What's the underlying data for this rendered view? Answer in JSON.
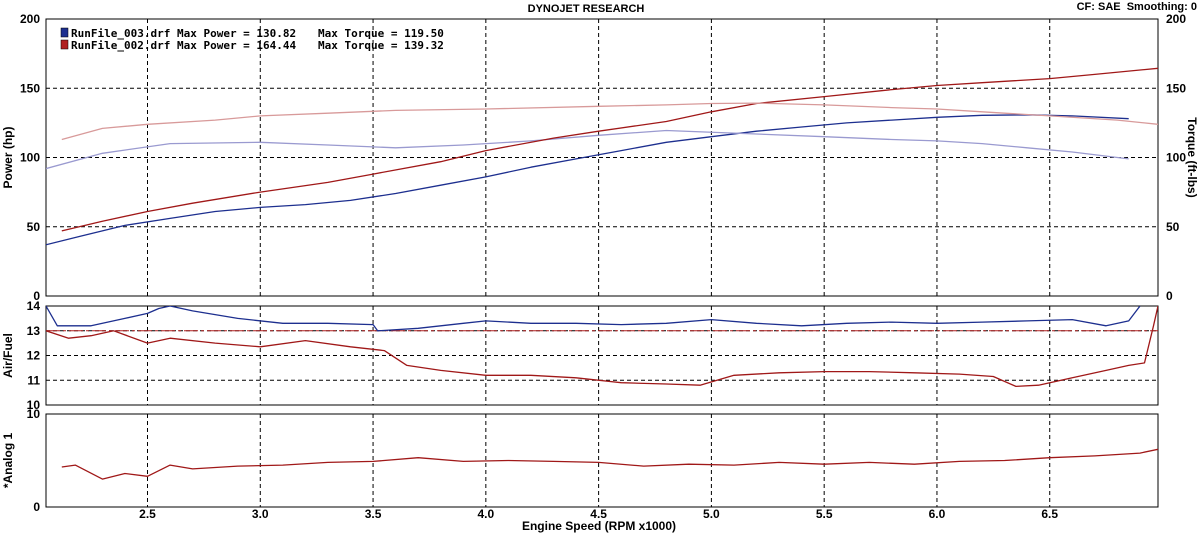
{
  "header": {
    "title": "DYNOJET RESEARCH",
    "settings": "CF: SAE  Smoothing: 0"
  },
  "chart_data": {
    "type": "line",
    "x_axis": {
      "label": "Engine Speed (RPM x1000)",
      "range": [
        2.05,
        6.98
      ],
      "ticks": [
        "2.5",
        "3.0",
        "3.5",
        "4.0",
        "4.5",
        "5.0",
        "5.5",
        "6.0",
        "6.5"
      ]
    },
    "legend": {
      "placement": "top-left",
      "entries": [
        {
          "file": "RunFile_003.drf",
          "text": "RunFile_003.drf Max Power = 130.82",
          "torque_text": "Max Torque = 119.50",
          "color": "#1d2f8f"
        },
        {
          "file": "RunFile_002.drf",
          "text": "RunFile_002.drf Max Power = 164.44",
          "torque_text": "Max Torque = 139.32",
          "color": "#b02020"
        }
      ]
    },
    "panels": [
      {
        "id": "power",
        "ylabel_left": "Power (hp)",
        "ylabel_right": "Torque (ft-lbs)",
        "ylim": [
          0,
          200
        ],
        "yticks": [
          "0",
          "50",
          "100",
          "150",
          "200"
        ],
        "grid": true,
        "series": [
          {
            "name": "RunFile_003.drf",
            "quantity": "power",
            "color": "#1d2f8f",
            "points": [
              [
                2.05,
                37
              ],
              [
                2.2,
                43
              ],
              [
                2.4,
                51
              ],
              [
                2.6,
                56
              ],
              [
                2.8,
                61
              ],
              [
                3.0,
                64
              ],
              [
                3.2,
                66
              ],
              [
                3.4,
                69
              ],
              [
                3.6,
                74
              ],
              [
                3.8,
                80
              ],
              [
                4.0,
                86
              ],
              [
                4.2,
                93
              ],
              [
                4.4,
                99
              ],
              [
                4.6,
                105
              ],
              [
                4.8,
                111
              ],
              [
                5.0,
                115
              ],
              [
                5.2,
                119
              ],
              [
                5.4,
                122
              ],
              [
                5.6,
                125
              ],
              [
                5.8,
                127
              ],
              [
                6.0,
                129
              ],
              [
                6.2,
                130.5
              ],
              [
                6.4,
                130.8
              ],
              [
                6.6,
                130
              ],
              [
                6.85,
                128
              ]
            ]
          },
          {
            "name": "RunFile_003.drf",
            "quantity": "torque",
            "color": "#9a9ad0",
            "points": [
              [
                2.05,
                92
              ],
              [
                2.3,
                103
              ],
              [
                2.6,
                110
              ],
              [
                3.0,
                111
              ],
              [
                3.3,
                109
              ],
              [
                3.6,
                107
              ],
              [
                3.9,
                109
              ],
              [
                4.2,
                112
              ],
              [
                4.5,
                116
              ],
              [
                4.8,
                119.5
              ],
              [
                5.2,
                117
              ],
              [
                5.5,
                115
              ],
              [
                5.8,
                113
              ],
              [
                6.0,
                112
              ],
              [
                6.2,
                110
              ],
              [
                6.4,
                107
              ],
              [
                6.6,
                104
              ],
              [
                6.85,
                99
              ]
            ]
          },
          {
            "name": "RunFile_002.drf",
            "quantity": "power",
            "color": "#a01818",
            "points": [
              [
                2.12,
                47
              ],
              [
                2.3,
                54
              ],
              [
                2.5,
                61
              ],
              [
                2.7,
                67
              ],
              [
                3.0,
                75
              ],
              [
                3.3,
                82
              ],
              [
                3.5,
                88
              ],
              [
                3.8,
                97
              ],
              [
                4.0,
                105
              ],
              [
                4.3,
                114
              ],
              [
                4.5,
                119
              ],
              [
                4.8,
                126
              ],
              [
                5.0,
                133
              ],
              [
                5.2,
                139
              ],
              [
                5.5,
                144
              ],
              [
                5.8,
                149
              ],
              [
                6.0,
                152
              ],
              [
                6.2,
                154
              ],
              [
                6.5,
                157
              ],
              [
                6.7,
                160
              ],
              [
                6.98,
                164.4
              ]
            ]
          },
          {
            "name": "RunFile_002.drf",
            "quantity": "torque",
            "color": "#d89a9a",
            "points": [
              [
                2.12,
                113
              ],
              [
                2.3,
                121
              ],
              [
                2.5,
                124
              ],
              [
                2.8,
                127
              ],
              [
                3.0,
                130
              ],
              [
                3.3,
                132
              ],
              [
                3.6,
                134
              ],
              [
                4.0,
                135
              ],
              [
                4.5,
                137
              ],
              [
                4.8,
                138
              ],
              [
                5.0,
                139
              ],
              [
                5.2,
                139.3
              ],
              [
                5.5,
                138
              ],
              [
                5.8,
                136
              ],
              [
                6.0,
                135
              ],
              [
                6.2,
                133
              ],
              [
                6.5,
                130
              ],
              [
                6.8,
                127
              ],
              [
                6.98,
                124
              ]
            ]
          }
        ]
      },
      {
        "id": "afr",
        "ylabel_left": "Air/Fuel",
        "ylim": [
          10,
          14
        ],
        "yticks": [
          "10",
          "11",
          "12",
          "13",
          "14"
        ],
        "reference_line": 13.0,
        "grid": true,
        "series": [
          {
            "name": "RunFile_003.drf",
            "color": "#1d2f8f",
            "points": [
              [
                2.05,
                14.0
              ],
              [
                2.1,
                13.2
              ],
              [
                2.25,
                13.2
              ],
              [
                2.4,
                13.5
              ],
              [
                2.5,
                13.7
              ],
              [
                2.55,
                13.9
              ],
              [
                2.6,
                14.0
              ],
              [
                2.7,
                13.8
              ],
              [
                2.9,
                13.5
              ],
              [
                3.1,
                13.3
              ],
              [
                3.3,
                13.3
              ],
              [
                3.5,
                13.25
              ],
              [
                3.52,
                13.0
              ],
              [
                3.7,
                13.1
              ],
              [
                3.9,
                13.3
              ],
              [
                4.0,
                13.4
              ],
              [
                4.2,
                13.3
              ],
              [
                4.4,
                13.3
              ],
              [
                4.6,
                13.25
              ],
              [
                4.8,
                13.3
              ],
              [
                5.0,
                13.45
              ],
              [
                5.2,
                13.3
              ],
              [
                5.4,
                13.2
              ],
              [
                5.6,
                13.3
              ],
              [
                5.8,
                13.35
              ],
              [
                6.0,
                13.3
              ],
              [
                6.2,
                13.35
              ],
              [
                6.4,
                13.4
              ],
              [
                6.6,
                13.45
              ],
              [
                6.75,
                13.2
              ],
              [
                6.85,
                13.4
              ],
              [
                6.9,
                14.0
              ]
            ]
          },
          {
            "name": "RunFile_002.drf",
            "color": "#a01818",
            "points": [
              [
                2.05,
                13.0
              ],
              [
                2.15,
                12.7
              ],
              [
                2.25,
                12.8
              ],
              [
                2.35,
                13.0
              ],
              [
                2.5,
                12.5
              ],
              [
                2.6,
                12.7
              ],
              [
                2.8,
                12.5
              ],
              [
                3.0,
                12.35
              ],
              [
                3.2,
                12.6
              ],
              [
                3.4,
                12.35
              ],
              [
                3.55,
                12.2
              ],
              [
                3.65,
                11.6
              ],
              [
                3.8,
                11.4
              ],
              [
                4.0,
                11.2
              ],
              [
                4.2,
                11.2
              ],
              [
                4.4,
                11.1
              ],
              [
                4.6,
                10.9
              ],
              [
                4.8,
                10.85
              ],
              [
                4.95,
                10.8
              ],
              [
                5.1,
                11.2
              ],
              [
                5.3,
                11.3
              ],
              [
                5.5,
                11.35
              ],
              [
                5.7,
                11.35
              ],
              [
                5.9,
                11.3
              ],
              [
                6.1,
                11.25
              ],
              [
                6.25,
                11.15
              ],
              [
                6.35,
                10.75
              ],
              [
                6.45,
                10.8
              ],
              [
                6.6,
                11.1
              ],
              [
                6.75,
                11.4
              ],
              [
                6.85,
                11.6
              ],
              [
                6.92,
                11.7
              ],
              [
                6.96,
                13.2
              ],
              [
                6.98,
                14.0
              ]
            ]
          }
        ]
      },
      {
        "id": "analog",
        "ylabel_left": "*Analog 1",
        "ylim": [
          0,
          10
        ],
        "yticks": [
          "0",
          "10"
        ],
        "grid": true,
        "series": [
          {
            "name": "RunFile_002.drf",
            "color": "#a01818",
            "points": [
              [
                2.12,
                4.3
              ],
              [
                2.18,
                4.5
              ],
              [
                2.3,
                3.0
              ],
              [
                2.4,
                3.6
              ],
              [
                2.5,
                3.3
              ],
              [
                2.6,
                4.5
              ],
              [
                2.7,
                4.1
              ],
              [
                2.9,
                4.4
              ],
              [
                3.1,
                4.5
              ],
              [
                3.3,
                4.8
              ],
              [
                3.5,
                4.9
              ],
              [
                3.7,
                5.3
              ],
              [
                3.9,
                4.9
              ],
              [
                4.1,
                5.0
              ],
              [
                4.3,
                4.9
              ],
              [
                4.5,
                4.8
              ],
              [
                4.7,
                4.4
              ],
              [
                4.9,
                4.6
              ],
              [
                5.1,
                4.5
              ],
              [
                5.3,
                4.8
              ],
              [
                5.5,
                4.6
              ],
              [
                5.7,
                4.8
              ],
              [
                5.9,
                4.6
              ],
              [
                6.1,
                4.9
              ],
              [
                6.3,
                5.0
              ],
              [
                6.5,
                5.3
              ],
              [
                6.7,
                5.5
              ],
              [
                6.9,
                5.8
              ],
              [
                6.98,
                6.2
              ]
            ]
          }
        ]
      }
    ]
  }
}
